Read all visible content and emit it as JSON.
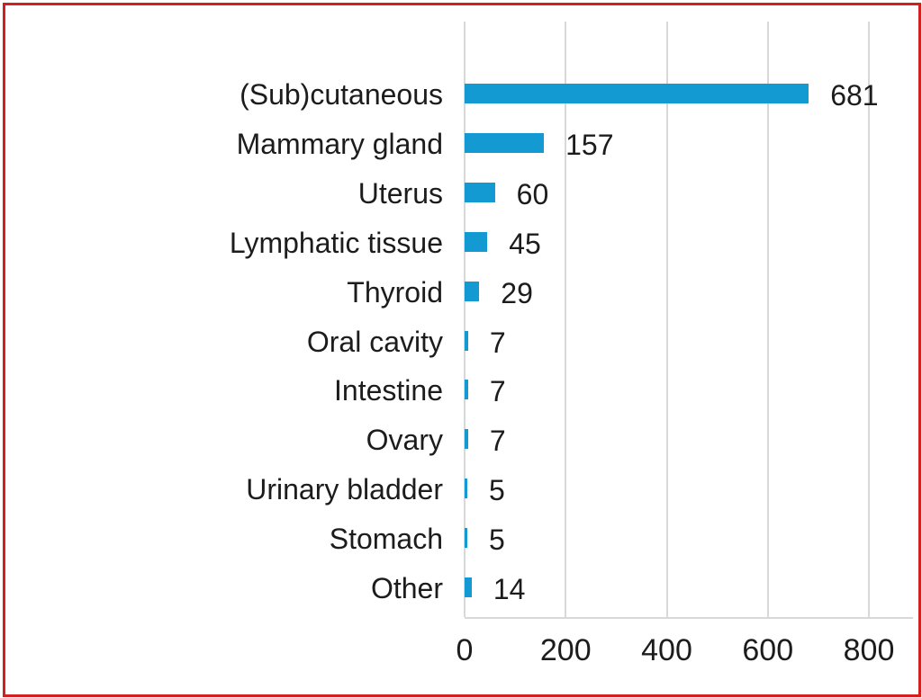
{
  "chart_data": {
    "type": "bar",
    "orientation": "horizontal",
    "title": "",
    "xlabel": "",
    "ylabel": "",
    "categories": [
      "(Sub)cutaneous",
      "Mammary gland",
      "Uterus",
      "Lymphatic tissue",
      "Thyroid",
      "Oral cavity",
      "Intestine",
      "Ovary",
      "Urinary bladder",
      "Stomach",
      "Other"
    ],
    "values": [
      681,
      157,
      60,
      45,
      29,
      7,
      7,
      7,
      5,
      5,
      14
    ],
    "data_labels": [
      "681",
      "157",
      "60",
      "45",
      "29",
      "7",
      "7",
      "7",
      "5",
      "5",
      "14"
    ],
    "x_ticks": [
      0,
      200,
      400,
      600,
      800
    ],
    "x_tick_labels": [
      "0",
      "200",
      "400",
      "600",
      "800"
    ],
    "xlim": [
      0,
      800
    ],
    "grid": "vertical-gridlines",
    "legend": "none",
    "colors": {
      "bar": "#149ad2",
      "frame_border": "#d1201f",
      "gridline": "#d8d8d8",
      "text": "#1c1c1c",
      "background": "#ffffff"
    }
  }
}
